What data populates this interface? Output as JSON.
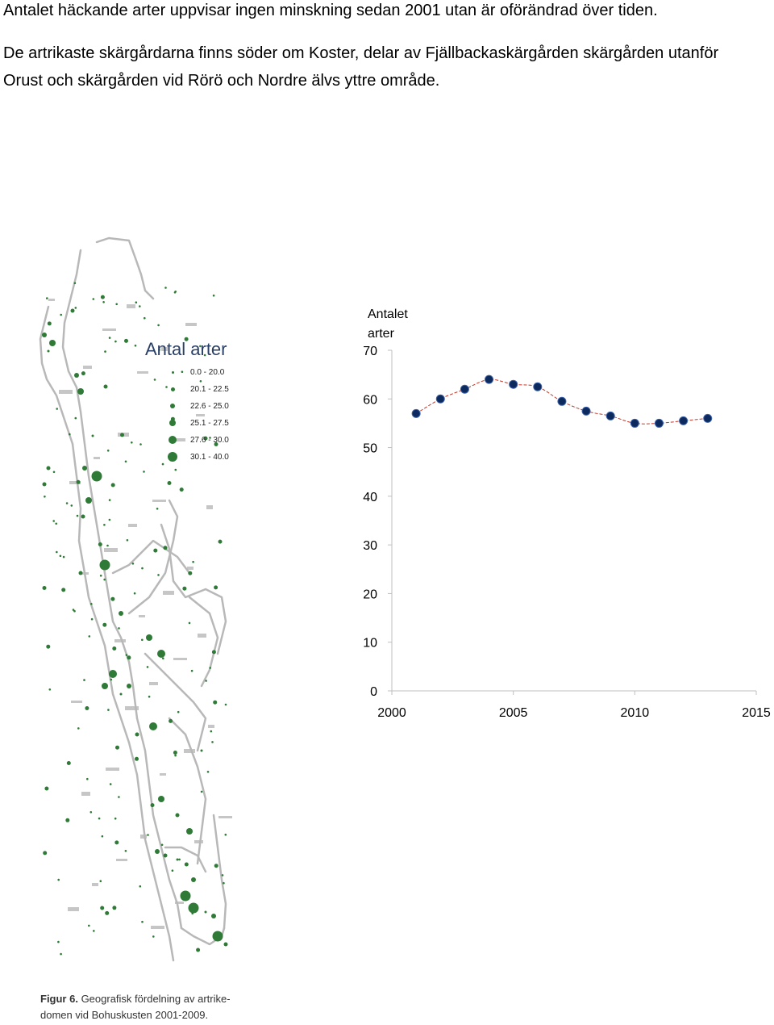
{
  "paragraphs": {
    "p1": "Antalet häckande arter uppvisar ingen minskning sedan 2001 utan är oförändrad över tiden.",
    "p2": "De artrikaste skärgårdarna finns söder om Koster, delar av Fjällbackaskärgården skärgården utanför Orust och skärgården vid Rörö och Nordre älvs yttre område."
  },
  "map": {
    "legend_title": "Antal arter",
    "legend_items": [
      {
        "label": "0.0 - 20.0",
        "size": 3
      },
      {
        "label": "20.1 - 22.5",
        "size": 5
      },
      {
        "label": "22.6 - 25.0",
        "size": 6
      },
      {
        "label": "25.1 - 27.5",
        "size": 8
      },
      {
        "label": "27.6 - 30.0",
        "size": 10
      },
      {
        "label": "30.1 - 40.0",
        "size": 12
      }
    ],
    "dot_color": "#2f7a36",
    "coast_color": "#b8b8b8"
  },
  "caption": {
    "bold": "Figur 6.",
    "line1": " Geografisk fördelning av artrike-",
    "line2": "domen vid Bohuskusten 2001-2009."
  },
  "chart_data": {
    "type": "scatter",
    "ylabel_line1": "Antalet",
    "ylabel_line2": "arter",
    "x": [
      2001,
      2002,
      2003,
      2004,
      2005,
      2006,
      2007,
      2008,
      2009,
      2010,
      2011,
      2012,
      2013
    ],
    "y": [
      57,
      60,
      62,
      64,
      63,
      62.5,
      59.5,
      57.5,
      56.5,
      55,
      55,
      55.5,
      56
    ],
    "xlim": [
      2000,
      2015
    ],
    "ylim": [
      0,
      70
    ],
    "xticks": [
      "2000",
      "2005",
      "2010",
      "2015"
    ],
    "yticks": [
      "0",
      "10",
      "20",
      "30",
      "40",
      "50",
      "60",
      "70"
    ],
    "point_color": "#0d2a5e",
    "trend_color": "#c0392b",
    "trendline": true
  }
}
